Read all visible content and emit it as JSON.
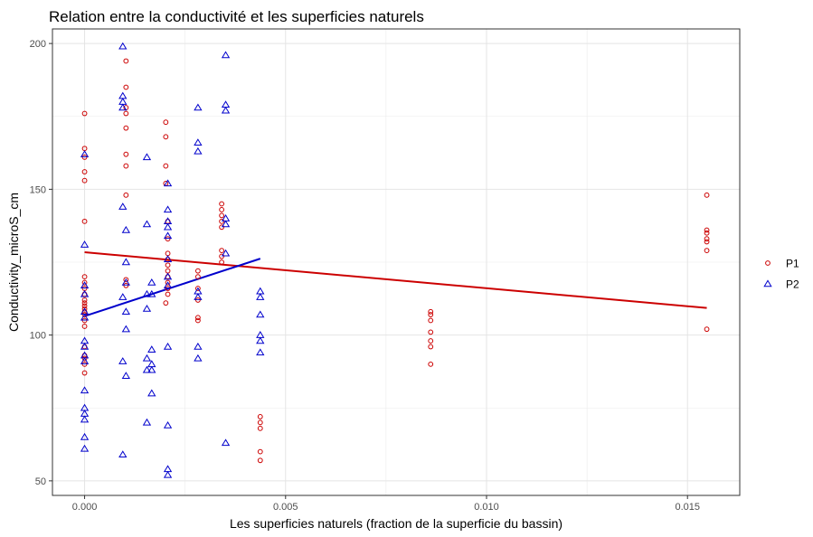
{
  "chart_data": {
    "type": "scatter",
    "title": "Relation entre la conductivité et les superficies naturels",
    "xlabel": "Les superficies naturels (fraction de la superficie du bassin)",
    "ylabel": "Conductivity_microS_cm",
    "xlim": [
      -0.0008,
      0.0163
    ],
    "ylim": [
      45,
      205
    ],
    "x_ticks": [
      "0.000",
      "0.005",
      "0.010",
      "0.015"
    ],
    "x_tick_values": [
      0,
      0.005,
      0.01,
      0.015
    ],
    "y_ticks": [
      "50",
      "100",
      "150",
      "200"
    ],
    "y_tick_values": [
      50,
      100,
      150,
      200
    ],
    "grid": true,
    "legend_position": "right",
    "series": [
      {
        "name": "P1",
        "marker": "circle",
        "color": "#cc0000",
        "points": [
          [
            0,
            176
          ],
          [
            0,
            164
          ],
          [
            0,
            161
          ],
          [
            0,
            156
          ],
          [
            0,
            153
          ],
          [
            0,
            139
          ],
          [
            0,
            120
          ],
          [
            0,
            118
          ],
          [
            0,
            116
          ],
          [
            0,
            114
          ],
          [
            0,
            112
          ],
          [
            0,
            111
          ],
          [
            0,
            110
          ],
          [
            0,
            109
          ],
          [
            0,
            108
          ],
          [
            0,
            107
          ],
          [
            0,
            105
          ],
          [
            0,
            103
          ],
          [
            0,
            96
          ],
          [
            0,
            93
          ],
          [
            0,
            92
          ],
          [
            0,
            90
          ],
          [
            0,
            87
          ],
          [
            0.00103,
            194
          ],
          [
            0.00103,
            185
          ],
          [
            0.00103,
            178
          ],
          [
            0.00103,
            176
          ],
          [
            0.00103,
            171
          ],
          [
            0.00103,
            162
          ],
          [
            0.00103,
            158
          ],
          [
            0.00103,
            148
          ],
          [
            0.00103,
            119
          ],
          [
            0.00103,
            117
          ],
          [
            0.00202,
            173
          ],
          [
            0.00202,
            168
          ],
          [
            0.00202,
            158
          ],
          [
            0.00202,
            152
          ],
          [
            0.00207,
            139
          ],
          [
            0.00207,
            133
          ],
          [
            0.00207,
            128
          ],
          [
            0.00207,
            126
          ],
          [
            0.00207,
            124
          ],
          [
            0.00207,
            122
          ],
          [
            0.00207,
            120
          ],
          [
            0.00207,
            118
          ],
          [
            0.00207,
            116
          ],
          [
            0.00207,
            114
          ],
          [
            0.00202,
            111
          ],
          [
            0.00282,
            122
          ],
          [
            0.00282,
            120
          ],
          [
            0.00282,
            116
          ],
          [
            0.00282,
            112
          ],
          [
            0.00282,
            106
          ],
          [
            0.00282,
            105
          ],
          [
            0.00341,
            145
          ],
          [
            0.00341,
            143
          ],
          [
            0.00341,
            141
          ],
          [
            0.00341,
            139
          ],
          [
            0.00341,
            137
          ],
          [
            0.00341,
            129
          ],
          [
            0.00341,
            127
          ],
          [
            0.00341,
            125
          ],
          [
            0.00437,
            72
          ],
          [
            0.00437,
            70
          ],
          [
            0.00437,
            68
          ],
          [
            0.00437,
            60
          ],
          [
            0.00437,
            57
          ],
          [
            0.00861,
            108
          ],
          [
            0.00861,
            107
          ],
          [
            0.00861,
            105
          ],
          [
            0.00861,
            101
          ],
          [
            0.00861,
            98
          ],
          [
            0.00861,
            96
          ],
          [
            0.00861,
            90
          ],
          [
            0.01548,
            148
          ],
          [
            0.01548,
            136
          ],
          [
            0.01548,
            135
          ],
          [
            0.01548,
            133
          ],
          [
            0.01548,
            132
          ],
          [
            0.01548,
            129
          ],
          [
            0.01548,
            102
          ]
        ],
        "trend": [
          [
            0,
            128.4
          ],
          [
            0.01548,
            109.3
          ]
        ]
      },
      {
        "name": "P2",
        "marker": "triangle",
        "color": "#0000cc",
        "points": [
          [
            0,
            162
          ],
          [
            0,
            131
          ],
          [
            0,
            117
          ],
          [
            0,
            114
          ],
          [
            0,
            108
          ],
          [
            0,
            106
          ],
          [
            0,
            98
          ],
          [
            0,
            96
          ],
          [
            0,
            93
          ],
          [
            0,
            91
          ],
          [
            0,
            81
          ],
          [
            0,
            75
          ],
          [
            0,
            73
          ],
          [
            0,
            71
          ],
          [
            0,
            65
          ],
          [
            0,
            61
          ],
          [
            0.00095,
            199
          ],
          [
            0.00095,
            182
          ],
          [
            0.00095,
            180
          ],
          [
            0.00095,
            178
          ],
          [
            0.00095,
            144
          ],
          [
            0.00095,
            113
          ],
          [
            0.00095,
            91
          ],
          [
            0.00095,
            59
          ],
          [
            0.00103,
            136
          ],
          [
            0.00103,
            125
          ],
          [
            0.00103,
            118
          ],
          [
            0.00103,
            108
          ],
          [
            0.00103,
            102
          ],
          [
            0.00103,
            86
          ],
          [
            0.00155,
            161
          ],
          [
            0.00155,
            138
          ],
          [
            0.00155,
            114
          ],
          [
            0.00155,
            109
          ],
          [
            0.00155,
            92
          ],
          [
            0.00155,
            88
          ],
          [
            0.00155,
            70
          ],
          [
            0.00167,
            118
          ],
          [
            0.00167,
            114
          ],
          [
            0.00167,
            95
          ],
          [
            0.00167,
            90
          ],
          [
            0.00167,
            88
          ],
          [
            0.00167,
            80
          ],
          [
            0.00207,
            152
          ],
          [
            0.00207,
            143
          ],
          [
            0.00207,
            139
          ],
          [
            0.00207,
            137
          ],
          [
            0.00207,
            134
          ],
          [
            0.00207,
            126
          ],
          [
            0.00207,
            120
          ],
          [
            0.00207,
            117
          ],
          [
            0.00207,
            96
          ],
          [
            0.00207,
            69
          ],
          [
            0.00207,
            54
          ],
          [
            0.00207,
            52
          ],
          [
            0.00282,
            178
          ],
          [
            0.00282,
            166
          ],
          [
            0.00282,
            163
          ],
          [
            0.00282,
            115
          ],
          [
            0.00282,
            113
          ],
          [
            0.00282,
            96
          ],
          [
            0.00282,
            92
          ],
          [
            0.00351,
            196
          ],
          [
            0.00351,
            179
          ],
          [
            0.00351,
            177
          ],
          [
            0.00351,
            140
          ],
          [
            0.00351,
            138
          ],
          [
            0.00351,
            128
          ],
          [
            0.00351,
            63
          ],
          [
            0.00437,
            115
          ],
          [
            0.00437,
            113
          ],
          [
            0.00437,
            107
          ],
          [
            0.00437,
            100
          ],
          [
            0.00437,
            98
          ],
          [
            0.00437,
            94
          ]
        ],
        "trend": [
          [
            0,
            106.5
          ],
          [
            0.00437,
            126.2
          ]
        ]
      }
    ]
  }
}
